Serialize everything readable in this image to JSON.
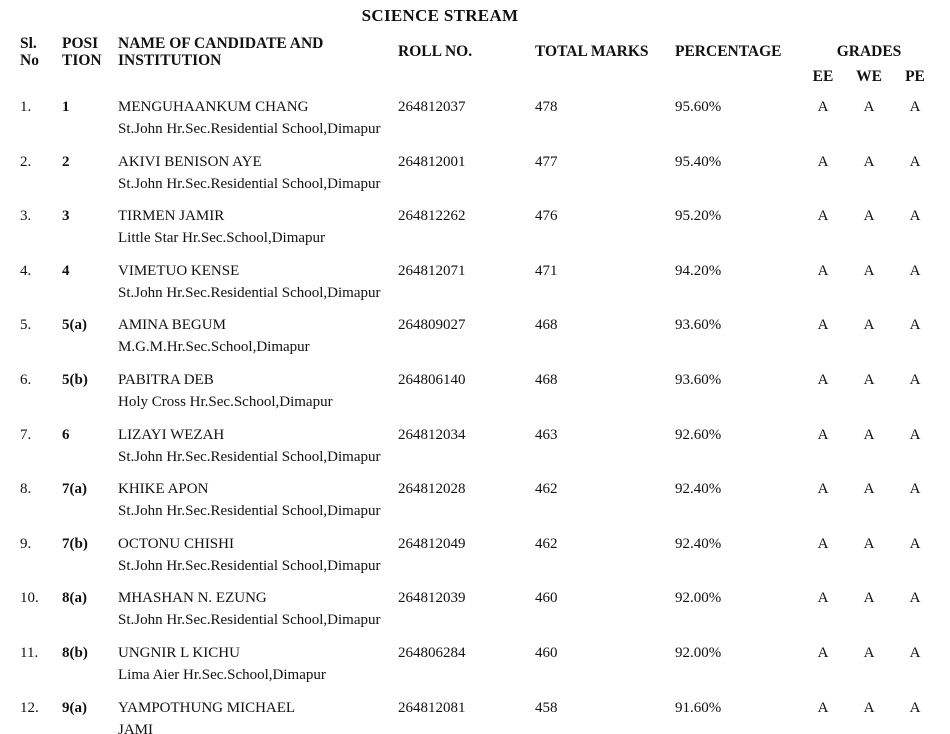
{
  "title": "SCIENCE STREAM",
  "table": {
    "headers": {
      "sl": [
        "Sl.",
        "No"
      ],
      "position": [
        "POSI",
        "TION"
      ],
      "name": [
        "NAME OF CANDIDATE AND",
        "INSTITUTION"
      ],
      "roll": "ROLL NO.",
      "marks": "TOTAL MARKS",
      "percentage": "PERCENTAGE",
      "grades": "GRADES",
      "grade_cols": [
        "EE",
        "WE",
        "PE"
      ]
    },
    "rows": [
      {
        "sl": "1.",
        "position": "1",
        "name": "MENGUHAANKUM CHANG",
        "name2": "",
        "institution": "St.John Hr.Sec.Residential School,Dimapur",
        "roll": "264812037",
        "marks": "478",
        "percentage": "95.60%",
        "ee": "A",
        "we": "A",
        "pe": "A"
      },
      {
        "sl": "2.",
        "position": "2",
        "name": "AKIVI BENISON AYE",
        "name2": "",
        "institution": "St.John Hr.Sec.Residential School,Dimapur",
        "roll": "264812001",
        "marks": "477",
        "percentage": "95.40%",
        "ee": "A",
        "we": "A",
        "pe": "A"
      },
      {
        "sl": "3.",
        "position": "3",
        "name": "TIRMEN JAMIR",
        "name2": "",
        "institution": "Little Star Hr.Sec.School,Dimapur",
        "roll": "264812262",
        "marks": "476",
        "percentage": "95.20%",
        "ee": "A",
        "we": "A",
        "pe": "A"
      },
      {
        "sl": "4.",
        "position": "4",
        "name": "VIMETUO KENSE",
        "name2": "",
        "institution": "St.John Hr.Sec.Residential School,Dimapur",
        "roll": "264812071",
        "marks": "471",
        "percentage": "94.20%",
        "ee": "A",
        "we": "A",
        "pe": "A"
      },
      {
        "sl": "5.",
        "position": "5(a)",
        "name": "AMINA BEGUM",
        "name2": "",
        "institution": "M.G.M.Hr.Sec.School,Dimapur",
        "roll": "264809027",
        "marks": "468",
        "percentage": "93.60%",
        "ee": "A",
        "we": "A",
        "pe": "A"
      },
      {
        "sl": "6.",
        "position": "5(b)",
        "name": "PABITRA DEB",
        "name2": "",
        "institution": "Holy Cross Hr.Sec.School,Dimapur",
        "roll": "264806140",
        "marks": "468",
        "percentage": "93.60%",
        "ee": "A",
        "we": "A",
        "pe": "A"
      },
      {
        "sl": "7.",
        "position": "6",
        "name": "LIZAYI WEZAH",
        "name2": "",
        "institution": "St.John Hr.Sec.Residential School,Dimapur",
        "roll": "264812034",
        "marks": "463",
        "percentage": "92.60%",
        "ee": "A",
        "we": "A",
        "pe": "A"
      },
      {
        "sl": "8.",
        "position": "7(a)",
        "name": "KHIKE APON",
        "name2": "",
        "institution": "St.John Hr.Sec.Residential School,Dimapur",
        "roll": "264812028",
        "marks": "462",
        "percentage": "92.40%",
        "ee": "A",
        "we": "A",
        "pe": "A"
      },
      {
        "sl": "9.",
        "position": "7(b)",
        "name": "OCTONU CHISHI",
        "name2": "",
        "institution": "St.John Hr.Sec.Residential School,Dimapur",
        "roll": "264812049",
        "marks": "462",
        "percentage": "92.40%",
        "ee": "A",
        "we": "A",
        "pe": "A"
      },
      {
        "sl": "10.",
        "position": "8(a)",
        "name": "MHASHAN N. EZUNG",
        "name2": "",
        "institution": "St.John Hr.Sec.Residential School,Dimapur",
        "roll": "264812039",
        "marks": "460",
        "percentage": "92.00%",
        "ee": "A",
        "we": "A",
        "pe": "A"
      },
      {
        "sl": "11.",
        "position": "8(b)",
        "name": "UNGNIR L KICHU",
        "name2": "",
        "institution": "Lima Aier Hr.Sec.School,Dimapur",
        "roll": "264806284",
        "marks": "460",
        "percentage": "92.00%",
        "ee": "A",
        "we": "A",
        "pe": "A"
      },
      {
        "sl": "12.",
        "position": "9(a)",
        "name": "YAMPOTHUNG MICHAEL",
        "name2": "JAMI",
        "institution": "",
        "roll": "264812081",
        "marks": "458",
        "percentage": "91.60%",
        "ee": "A",
        "we": "A",
        "pe": "A"
      }
    ]
  }
}
